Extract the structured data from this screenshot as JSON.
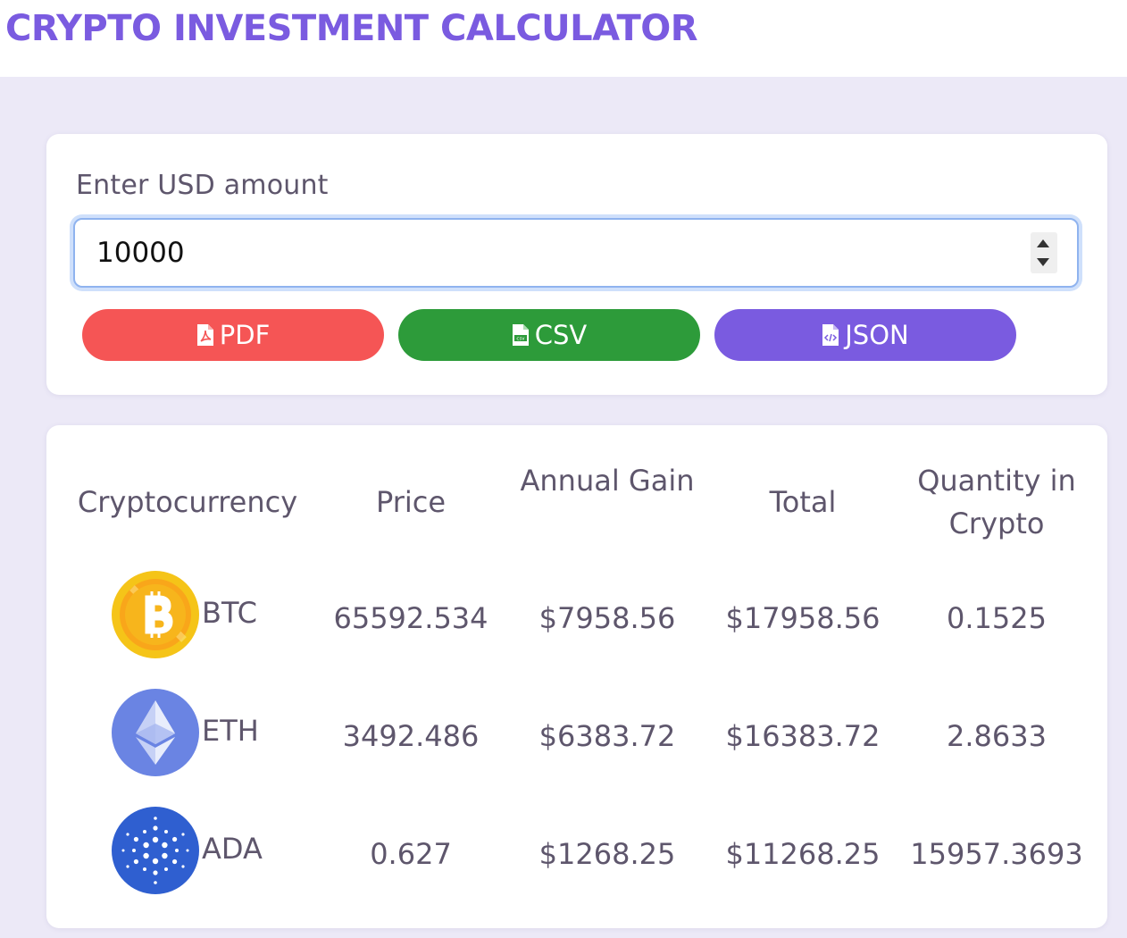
{
  "app": {
    "title": "CRYPTO INVESTMENT CALCULATOR"
  },
  "input": {
    "label": "Enter USD amount",
    "value": "10000"
  },
  "export": {
    "pdf_label": "PDF",
    "csv_label": "CSV",
    "json_label": "JSON"
  },
  "colors": {
    "accent": "#7a5be0",
    "pdf": "#f55555",
    "csv": "#2d9b3a",
    "json": "#7a5be0",
    "background": "#ece9f7"
  },
  "table": {
    "headers": [
      "Cryptocurrency",
      "Price",
      "Annual Gain",
      "Total",
      "Quantity in Crypto"
    ],
    "rows": [
      {
        "symbol": "BTC",
        "icon": "bitcoin-icon",
        "price": "65592.534",
        "annual_gain": "$7958.56",
        "total": "$17958.56",
        "quantity": "0.1525"
      },
      {
        "symbol": "ETH",
        "icon": "ethereum-icon",
        "price": "3492.486",
        "annual_gain": "$6383.72",
        "total": "$16383.72",
        "quantity": "2.8633"
      },
      {
        "symbol": "ADA",
        "icon": "cardano-icon",
        "price": "0.627",
        "annual_gain": "$1268.25",
        "total": "$11268.25",
        "quantity": "15957.3693"
      }
    ]
  }
}
